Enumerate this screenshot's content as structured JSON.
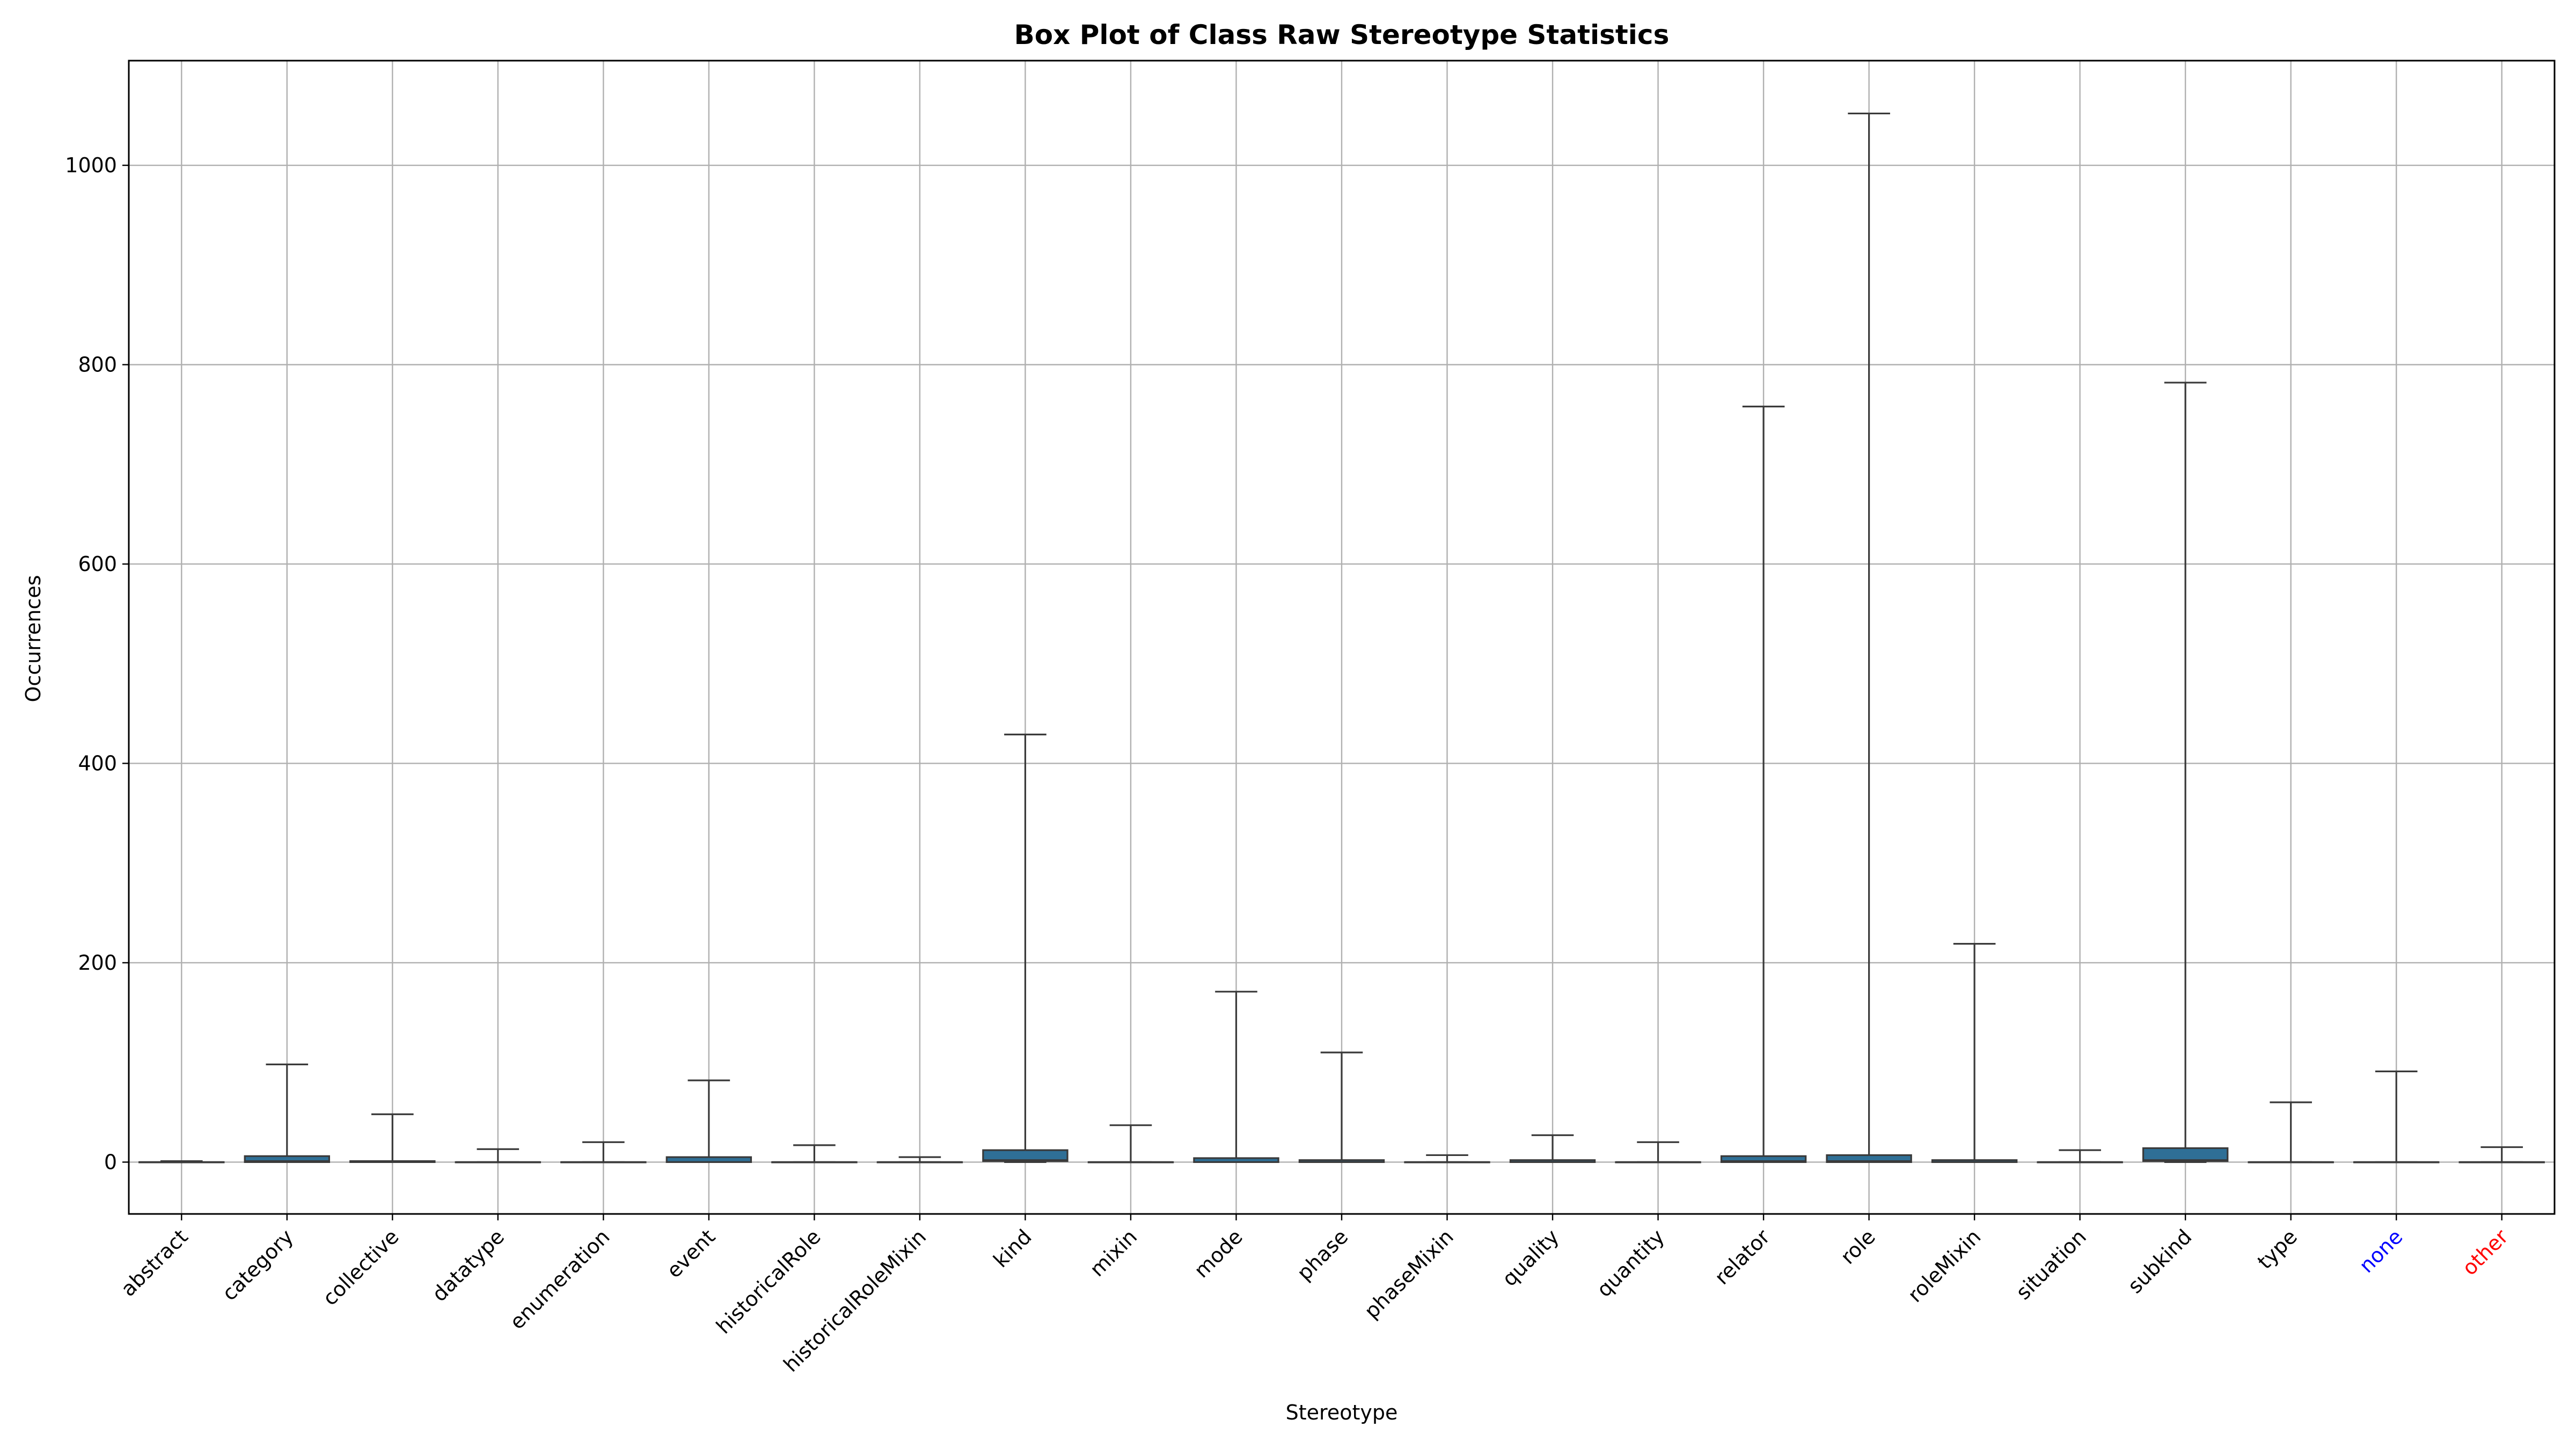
{
  "chart_data": {
    "type": "box",
    "title": "Box Plot of Class Raw Stereotype Statistics",
    "xlabel": "Stereotype",
    "ylabel": "Occurrences",
    "ylim": [
      -52,
      1105
    ],
    "yticks": [
      0,
      200,
      400,
      600,
      800,
      1000
    ],
    "grid": true,
    "box_color": "#2f6f96",
    "categories": [
      {
        "name": "abstract",
        "min": 0,
        "q1": 0,
        "median": 0,
        "q3": 0,
        "max": 1,
        "color": "#000000"
      },
      {
        "name": "category",
        "min": 0,
        "q1": 0,
        "median": 1,
        "q3": 6,
        "max": 98,
        "color": "#000000"
      },
      {
        "name": "collective",
        "min": 0,
        "q1": 0,
        "median": 0,
        "q3": 1,
        "max": 48,
        "color": "#000000"
      },
      {
        "name": "datatype",
        "min": 0,
        "q1": 0,
        "median": 0,
        "q3": 0,
        "max": 13,
        "color": "#000000"
      },
      {
        "name": "enumeration",
        "min": 0,
        "q1": 0,
        "median": 0,
        "q3": 0,
        "max": 20,
        "color": "#000000"
      },
      {
        "name": "event",
        "min": 0,
        "q1": 0,
        "median": 0,
        "q3": 5,
        "max": 82,
        "color": "#000000"
      },
      {
        "name": "historicalRole",
        "min": 0,
        "q1": 0,
        "median": 0,
        "q3": 0,
        "max": 17,
        "color": "#000000"
      },
      {
        "name": "historicalRoleMixin",
        "min": 0,
        "q1": 0,
        "median": 0,
        "q3": 0,
        "max": 5,
        "color": "#000000"
      },
      {
        "name": "kind",
        "min": 0,
        "q1": 1,
        "median": 2,
        "q3": 12,
        "max": 429,
        "color": "#000000"
      },
      {
        "name": "mixin",
        "min": 0,
        "q1": 0,
        "median": 0,
        "q3": 0,
        "max": 37,
        "color": "#000000"
      },
      {
        "name": "mode",
        "min": 0,
        "q1": 0,
        "median": 0,
        "q3": 4,
        "max": 171,
        "color": "#000000"
      },
      {
        "name": "phase",
        "min": 0,
        "q1": 0,
        "median": 0,
        "q3": 2,
        "max": 110,
        "color": "#000000"
      },
      {
        "name": "phaseMixin",
        "min": 0,
        "q1": 0,
        "median": 0,
        "q3": 0,
        "max": 7,
        "color": "#000000"
      },
      {
        "name": "quality",
        "min": 0,
        "q1": 0,
        "median": 0,
        "q3": 2,
        "max": 27,
        "color": "#000000"
      },
      {
        "name": "quantity",
        "min": 0,
        "q1": 0,
        "median": 0,
        "q3": 0,
        "max": 20,
        "color": "#000000"
      },
      {
        "name": "relator",
        "min": 0,
        "q1": 0,
        "median": 1,
        "q3": 6,
        "max": 758,
        "color": "#000000"
      },
      {
        "name": "role",
        "min": 0,
        "q1": 0,
        "median": 1,
        "q3": 7,
        "max": 1052,
        "color": "#000000"
      },
      {
        "name": "roleMixin",
        "min": 0,
        "q1": 0,
        "median": 0,
        "q3": 2,
        "max": 219,
        "color": "#000000"
      },
      {
        "name": "situation",
        "min": 0,
        "q1": 0,
        "median": 0,
        "q3": 0,
        "max": 12,
        "color": "#000000"
      },
      {
        "name": "subkind",
        "min": 0,
        "q1": 1,
        "median": 2,
        "q3": 14,
        "max": 782,
        "color": "#000000"
      },
      {
        "name": "type",
        "min": 0,
        "q1": 0,
        "median": 0,
        "q3": 0,
        "max": 60,
        "color": "#000000"
      },
      {
        "name": "none",
        "min": 0,
        "q1": 0,
        "median": 0,
        "q3": 0,
        "max": 91,
        "color": "#0000ff"
      },
      {
        "name": "other",
        "min": 0,
        "q1": 0,
        "median": 0,
        "q3": 0,
        "max": 15,
        "color": "#ff0000"
      }
    ]
  }
}
